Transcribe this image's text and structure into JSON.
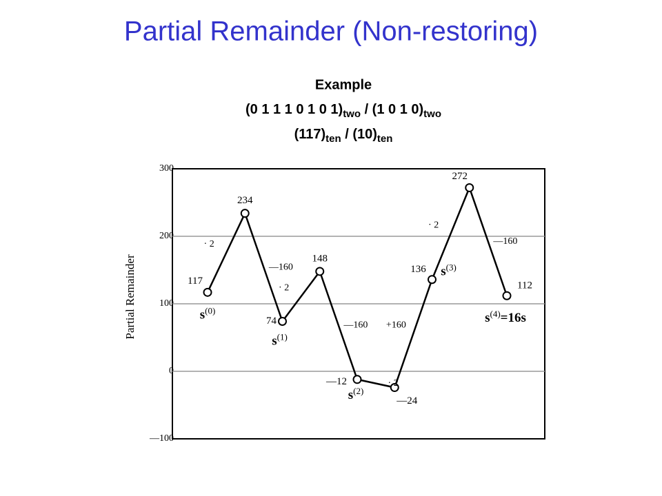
{
  "chart_data": {
    "type": "line",
    "title": "Partial Remainder (Non-restoring)",
    "example": {
      "heading": "Example",
      "lines": [
        [
          "(0 1 1 1   0 1 0 1)",
          "two",
          " / (1 0 1 0)",
          "two"
        ],
        [
          "(117)",
          "ten",
          "  /  (10)",
          "ten"
        ]
      ]
    },
    "ylabel": "Partial Remainder",
    "categories": [
      "s(0)",
      null,
      "s(1)",
      null,
      "s(2)",
      null,
      "s(3)",
      null,
      "s(4)=16s"
    ],
    "series": [
      {
        "name": "Partial Remainder",
        "color": "#000000",
        "values": [
          117,
          234,
          74,
          148,
          -12,
          -24,
          136,
          272,
          112
        ],
        "value_labels": [
          "117",
          "234",
          "74",
          "148",
          "—12",
          "—24",
          "136",
          "272",
          "112"
        ]
      }
    ],
    "step_labels": [
      "· 2",
      "—160",
      "· 2",
      "—160",
      "· 2",
      "+160",
      "· 2",
      "—160"
    ],
    "ylim": [
      -100,
      300
    ],
    "yticks": [
      {
        "value": -100,
        "label": "—100"
      },
      0,
      100,
      200,
      300
    ],
    "grid": true
  }
}
